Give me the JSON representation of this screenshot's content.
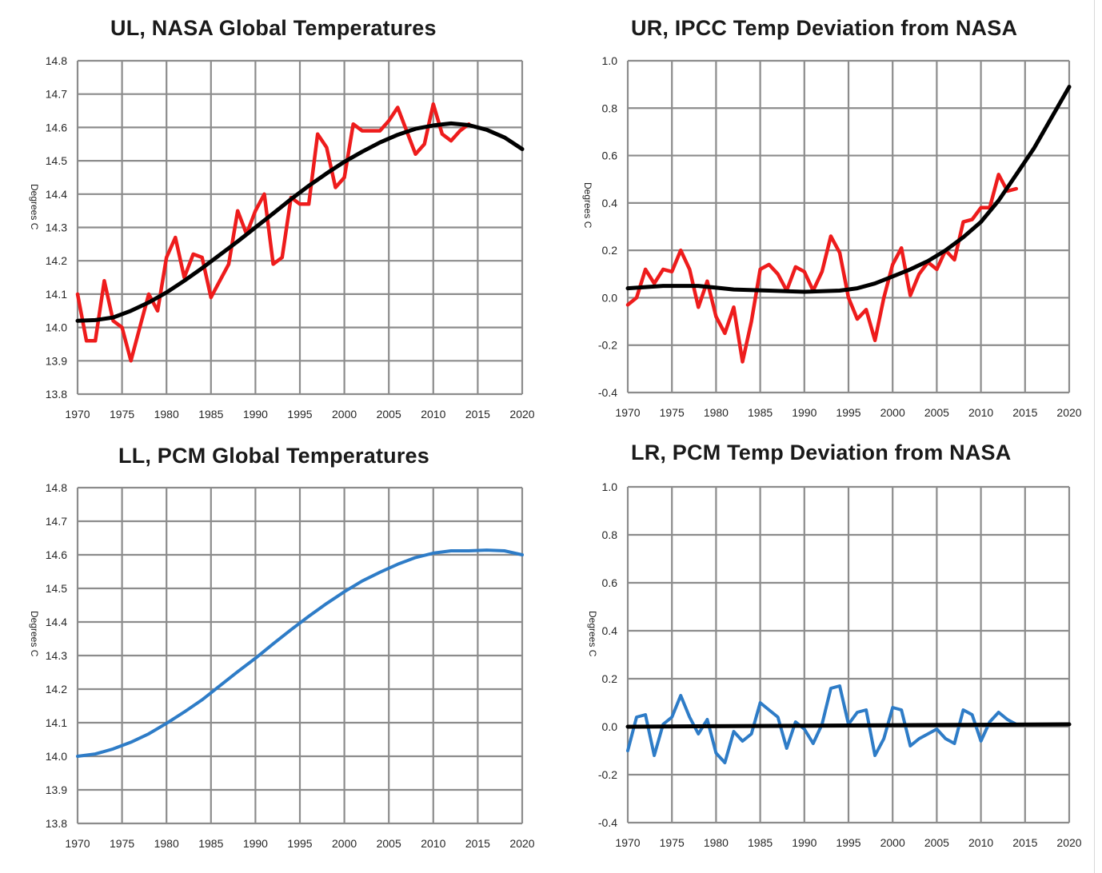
{
  "chart_data": [
    {
      "type": "line",
      "title": "UL, NASA Global Temperatures",
      "xlabel": "",
      "ylabel": "Degrees C",
      "xlim": [
        1970,
        2020
      ],
      "ylim": [
        13.8,
        14.8
      ],
      "x_ticks": [
        1970,
        1975,
        1980,
        1985,
        1990,
        1995,
        2000,
        2005,
        2010,
        2015,
        2020
      ],
      "y_ticks": [
        "14.8",
        "14.7",
        "14.6",
        "14.5",
        "14.4",
        "14.3",
        "14.2",
        "14.1",
        "14.0",
        "13.9",
        "13.8"
      ],
      "grid": true,
      "series": [
        {
          "color": "#ee1c1c",
          "x": [
            1970,
            1971,
            1972,
            1973,
            1974,
            1975,
            1976,
            1977,
            1978,
            1979,
            1980,
            1981,
            1982,
            1983,
            1984,
            1985,
            1986,
            1987,
            1988,
            1989,
            1990,
            1991,
            1992,
            1993,
            1994,
            1995,
            1996,
            1997,
            1998,
            1999,
            2000,
            2001,
            2002,
            2003,
            2004,
            2005,
            2006,
            2007,
            2008,
            2009,
            2010,
            2011,
            2012,
            2013,
            2014
          ],
          "y": [
            14.1,
            13.96,
            13.96,
            14.14,
            14.02,
            14.0,
            13.9,
            14.0,
            14.1,
            14.05,
            14.21,
            14.27,
            14.15,
            14.22,
            14.21,
            14.09,
            14.14,
            14.19,
            14.35,
            14.28,
            14.35,
            14.4,
            14.19,
            14.21,
            14.39,
            14.37,
            14.37,
            14.58,
            14.54,
            14.42,
            14.45,
            14.61,
            14.59,
            14.59,
            14.59,
            14.62,
            14.66,
            14.59,
            14.52,
            14.55,
            14.67,
            14.58,
            14.56,
            14.59,
            14.61
          ]
        },
        {
          "color": "#000000",
          "x": [
            1970,
            1972,
            1974,
            1976,
            1978,
            1980,
            1982,
            1984,
            1986,
            1988,
            1990,
            1992,
            1994,
            1996,
            1998,
            2000,
            2002,
            2004,
            2006,
            2008,
            2010,
            2012,
            2014,
            2016,
            2018,
            2020
          ],
          "y": [
            14.02,
            14.022,
            14.03,
            14.05,
            14.075,
            14.105,
            14.14,
            14.178,
            14.218,
            14.258,
            14.3,
            14.342,
            14.385,
            14.425,
            14.462,
            14.497,
            14.527,
            14.555,
            14.578,
            14.596,
            14.606,
            14.612,
            14.607,
            14.593,
            14.57,
            14.535
          ]
        }
      ]
    },
    {
      "type": "line",
      "title": "UR, IPCC Temp Deviation from NASA",
      "xlabel": "",
      "ylabel": "Degrees C",
      "xlim": [
        1970,
        2020
      ],
      "ylim": [
        -0.4,
        1.0
      ],
      "x_ticks": [
        1970,
        1975,
        1980,
        1985,
        1990,
        1995,
        2000,
        2005,
        2010,
        2015,
        2020
      ],
      "y_ticks": [
        "1.0",
        "0.8",
        "0.6",
        "0.4",
        "0.2",
        "0.0",
        "-0.2",
        "-0.4"
      ],
      "grid": true,
      "series": [
        {
          "color": "#ee1c1c",
          "x": [
            1970,
            1971,
            1972,
            1973,
            1974,
            1975,
            1976,
            1977,
            1978,
            1979,
            1980,
            1981,
            1982,
            1983,
            1984,
            1985,
            1986,
            1987,
            1988,
            1989,
            1990,
            1991,
            1992,
            1993,
            1994,
            1995,
            1996,
            1997,
            1998,
            1999,
            2000,
            2001,
            2002,
            2003,
            2004,
            2005,
            2006,
            2007,
            2008,
            2009,
            2010,
            2011,
            2012,
            2013,
            2014
          ],
          "y": [
            -0.03,
            0.0,
            0.12,
            0.06,
            0.12,
            0.11,
            0.2,
            0.12,
            -0.04,
            0.07,
            -0.08,
            -0.15,
            -0.04,
            -0.27,
            -0.1,
            0.12,
            0.14,
            0.1,
            0.03,
            0.13,
            0.11,
            0.03,
            0.11,
            0.26,
            0.19,
            0.0,
            -0.09,
            -0.05,
            -0.18,
            0.0,
            0.14,
            0.21,
            0.01,
            0.1,
            0.15,
            0.12,
            0.2,
            0.16,
            0.32,
            0.33,
            0.38,
            0.38,
            0.52,
            0.45,
            0.46
          ]
        },
        {
          "color": "#000000",
          "x": [
            1970,
            1974,
            1978,
            1982,
            1986,
            1990,
            1994,
            1996,
            1998,
            2000,
            2002,
            2004,
            2006,
            2008,
            2010,
            2012,
            2014,
            2016,
            2018,
            2020
          ],
          "y": [
            0.04,
            0.05,
            0.05,
            0.035,
            0.03,
            0.025,
            0.03,
            0.04,
            0.06,
            0.09,
            0.12,
            0.155,
            0.2,
            0.255,
            0.32,
            0.41,
            0.52,
            0.63,
            0.76,
            0.89
          ]
        }
      ]
    },
    {
      "type": "line",
      "title": "LL, PCM Global Temperatures",
      "xlabel": "",
      "ylabel": "Degrees C",
      "xlim": [
        1970,
        2020
      ],
      "ylim": [
        13.8,
        14.8
      ],
      "x_ticks": [
        1970,
        1975,
        1980,
        1985,
        1990,
        1995,
        2000,
        2005,
        2010,
        2015,
        2020
      ],
      "y_ticks": [
        "14.8",
        "14.7",
        "14.6",
        "14.5",
        "14.4",
        "14.3",
        "14.2",
        "14.1",
        "14.0",
        "13.9",
        "13.8"
      ],
      "grid": true,
      "series": [
        {
          "color": "#2e7cc7",
          "x": [
            1970,
            1972,
            1974,
            1976,
            1978,
            1980,
            1982,
            1984,
            1986,
            1988,
            1990,
            1992,
            1994,
            1996,
            1998,
            2000,
            2002,
            2004,
            2006,
            2008,
            2010,
            2012,
            2014,
            2016,
            2018,
            2020
          ],
          "y": [
            14.0,
            14.007,
            14.022,
            14.042,
            14.067,
            14.098,
            14.132,
            14.168,
            14.21,
            14.252,
            14.292,
            14.335,
            14.377,
            14.417,
            14.455,
            14.49,
            14.522,
            14.548,
            14.572,
            14.592,
            14.605,
            14.612,
            14.612,
            14.614,
            14.612,
            14.6
          ]
        }
      ]
    },
    {
      "type": "line",
      "title": "LR, PCM Temp Deviation from NASA",
      "xlabel": "",
      "ylabel": "Degrees C",
      "xlim": [
        1970,
        2020
      ],
      "ylim": [
        -0.4,
        1.0
      ],
      "x_ticks": [
        1970,
        1975,
        1980,
        1985,
        1990,
        1995,
        2000,
        2005,
        2010,
        2015,
        2020
      ],
      "y_ticks": [
        "1.0",
        "0.8",
        "0.6",
        "0.4",
        "0.2",
        "0.0",
        "-0.2",
        "-0.4"
      ],
      "grid": true,
      "series": [
        {
          "color": "#2e7cc7",
          "x": [
            1970,
            1971,
            1972,
            1973,
            1974,
            1975,
            1976,
            1977,
            1978,
            1979,
            1980,
            1981,
            1982,
            1983,
            1984,
            1985,
            1986,
            1987,
            1988,
            1989,
            1990,
            1991,
            1992,
            1993,
            1994,
            1995,
            1996,
            1997,
            1998,
            1999,
            2000,
            2001,
            2002,
            2003,
            2004,
            2005,
            2006,
            2007,
            2008,
            2009,
            2010,
            2011,
            2012,
            2013,
            2014
          ],
          "y": [
            -0.1,
            0.04,
            0.05,
            -0.12,
            0.01,
            0.04,
            0.13,
            0.04,
            -0.03,
            0.03,
            -0.11,
            -0.15,
            -0.02,
            -0.06,
            -0.03,
            0.1,
            0.07,
            0.04,
            -0.09,
            0.02,
            -0.01,
            -0.07,
            0.01,
            0.16,
            0.17,
            0.01,
            0.06,
            0.07,
            -0.12,
            -0.05,
            0.08,
            0.07,
            -0.08,
            -0.05,
            -0.03,
            -0.01,
            -0.05,
            -0.07,
            0.07,
            0.05,
            -0.06,
            0.02,
            0.06,
            0.03,
            0.01
          ]
        },
        {
          "color": "#000000",
          "x": [
            1970,
            2020
          ],
          "y": [
            0.0,
            0.01
          ]
        }
      ]
    }
  ]
}
